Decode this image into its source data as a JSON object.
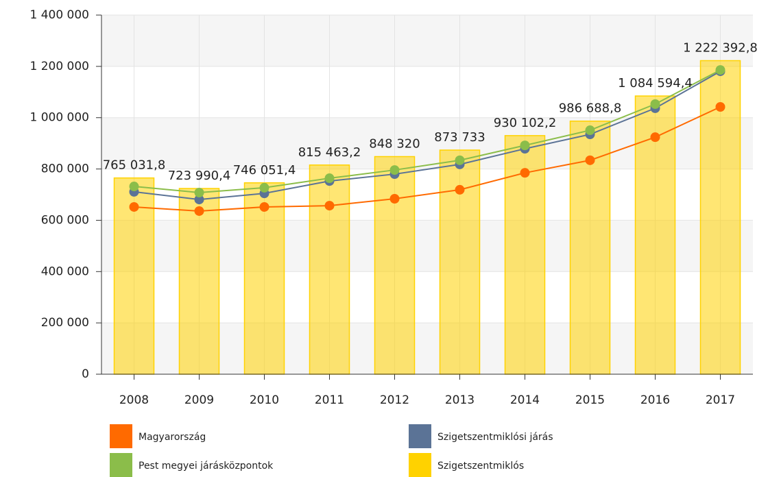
{
  "chart_data": {
    "type": "combo",
    "categories": [
      "2008",
      "2009",
      "2010",
      "2011",
      "2012",
      "2013",
      "2014",
      "2015",
      "2016",
      "2017"
    ],
    "series": [
      {
        "name": "Szigetszentmiklós",
        "type": "bar",
        "color": "#ffd200",
        "values": [
          765031.8,
          723990.4,
          746051.4,
          815463.2,
          848320,
          873733,
          930102.2,
          986688.8,
          1084594.4,
          1222392.8
        ],
        "value_labels": [
          "765 031,8",
          "723 990,4",
          "746 051,4",
          "815 463,2",
          "848 320",
          "873 733",
          "930 102,2",
          "986 688,8",
          "1 084 594,4",
          "1 222 392,8"
        ]
      },
      {
        "name": "Magyarország",
        "type": "line",
        "color": "#ff6a00",
        "values": [
          652000,
          636000,
          652000,
          657000,
          684000,
          719000,
          785000,
          834000,
          924000,
          1042000
        ]
      },
      {
        "name": "Szigetszentmiklósi járás",
        "type": "line",
        "color": "#5b7396",
        "values": [
          711000,
          681000,
          705000,
          753000,
          780000,
          818000,
          879000,
          935000,
          1037000,
          1181000
        ]
      },
      {
        "name": "Pest megyei járásközpontok",
        "type": "line",
        "color": "#8bbd4a",
        "values": [
          732000,
          708000,
          727000,
          764000,
          796000,
          834000,
          892000,
          951000,
          1053000,
          1186000
        ]
      }
    ],
    "ylim": [
      0,
      1400000
    ],
    "yticks": [
      0,
      {
        "value": 200000,
        "label": "200 000"
      },
      {
        "value": 400000,
        "label": "400 000"
      },
      {
        "value": 600000,
        "label": "600 000"
      },
      {
        "value": 800000,
        "label": "800 000"
      },
      {
        "value": 1000000,
        "label": "1 000 000"
      },
      {
        "value": 1200000,
        "label": "1 200 000"
      },
      {
        "value": 1400000,
        "label": "1 400 000"
      }
    ],
    "grid": true,
    "legend_order": [
      1,
      2,
      3,
      0
    ]
  }
}
